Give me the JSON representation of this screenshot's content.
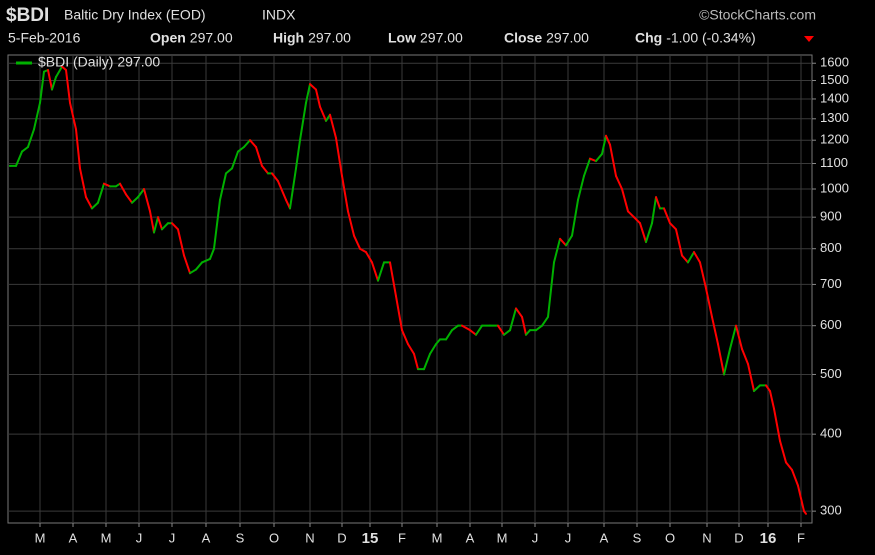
{
  "chart_data": {
    "type": "line",
    "title": "$BDI",
    "subtitle": "Baltic Dry Index (EOD)",
    "exchange": "INDX",
    "source": "©StockCharts.com",
    "quote": {
      "date": "5-Feb-2016",
      "fields": [
        {
          "label": "Open",
          "value": "297.00"
        },
        {
          "label": "High",
          "value": "297.00"
        },
        {
          "label": "Low",
          "value": "297.00"
        },
        {
          "label": "Close",
          "value": "297.00"
        },
        {
          "label": "Chg",
          "value": "-1.00 (-0.34%)"
        }
      ]
    },
    "up_color": "#00b000",
    "down_color": "#ff0000",
    "log_scale": true,
    "grid": true,
    "legend": "top-left",
    "xlim": [
      -2,
      802
    ],
    "xticks": [
      {
        "value": 30,
        "label": "M"
      },
      {
        "value": 63,
        "label": "A"
      },
      {
        "value": 96,
        "label": "M"
      },
      {
        "value": 129,
        "label": "J"
      },
      {
        "value": 162,
        "label": "J"
      },
      {
        "value": 196,
        "label": "A"
      },
      {
        "value": 230,
        "label": "S"
      },
      {
        "value": 264,
        "label": "O"
      },
      {
        "value": 300,
        "label": "N"
      },
      {
        "value": 332,
        "label": "D"
      },
      {
        "value": 360,
        "label": "15"
      },
      {
        "value": 392,
        "label": "F"
      },
      {
        "value": 427,
        "label": "M"
      },
      {
        "value": 460,
        "label": "A"
      },
      {
        "value": 492,
        "label": "M"
      },
      {
        "value": 525,
        "label": "J"
      },
      {
        "value": 558,
        "label": "J"
      },
      {
        "value": 594,
        "label": "A"
      },
      {
        "value": 627,
        "label": "S"
      },
      {
        "value": 660,
        "label": "O"
      },
      {
        "value": 697,
        "label": "N"
      },
      {
        "value": 729,
        "label": "D"
      },
      {
        "value": 758,
        "label": "16"
      },
      {
        "value": 791,
        "label": "F"
      }
    ],
    "ylim": [
      287,
      1650
    ],
    "yticks": [
      300,
      400,
      500,
      600,
      700,
      800,
      900,
      1000,
      1100,
      1200,
      1300,
      1400,
      1500,
      1600
    ],
    "series": [
      {
        "name": "$BDI (Daily) 297.00",
        "color": "#00b000",
        "x": [
          0,
          6,
          12,
          18,
          24,
          30,
          34,
          38,
          42,
          46,
          52,
          56,
          60,
          66,
          70,
          76,
          82,
          88,
          94,
          100,
          106,
          110,
          116,
          122,
          128,
          134,
          140,
          144,
          148,
          152,
          158,
          162,
          168,
          174,
          180,
          186,
          192,
          200,
          204,
          210,
          216,
          222,
          228,
          234,
          240,
          246,
          252,
          258,
          262,
          268,
          276,
          280,
          286,
          290,
          296,
          300,
          306,
          310,
          316,
          320,
          326,
          332,
          338,
          344,
          350,
          356,
          362,
          368,
          374,
          380,
          386,
          392,
          398,
          404,
          408,
          414,
          420,
          426,
          430,
          436,
          442,
          448,
          452,
          460,
          466,
          472,
          480,
          488,
          494,
          500,
          506,
          512,
          516,
          520,
          526,
          532,
          538,
          544,
          550,
          556,
          562,
          568,
          574,
          580,
          586,
          592,
          596,
          600,
          606,
          612,
          618,
          624,
          630,
          636,
          642,
          646,
          650,
          654,
          660,
          666,
          672,
          678,
          684,
          690,
          696,
          702,
          708,
          714,
          720,
          726,
          732,
          738,
          744,
          750,
          756,
          760,
          764,
          770,
          776,
          782,
          788,
          794,
          796
        ],
        "values": [
          1090,
          1090,
          1150,
          1170,
          1250,
          1380,
          1550,
          1560,
          1450,
          1520,
          1580,
          1560,
          1380,
          1250,
          1080,
          970,
          930,
          950,
          1020,
          1010,
          1010,
          1020,
          980,
          950,
          970,
          1000,
          920,
          850,
          900,
          860,
          880,
          880,
          860,
          780,
          730,
          740,
          760,
          770,
          800,
          960,
          1060,
          1080,
          1150,
          1170,
          1200,
          1170,
          1090,
          1060,
          1060,
          1030,
          960,
          930,
          1080,
          1200,
          1380,
          1480,
          1450,
          1360,
          1290,
          1320,
          1210,
          1050,
          920,
          840,
          800,
          790,
          760,
          710,
          760,
          760,
          670,
          590,
          560,
          540,
          510,
          510,
          540,
          560,
          570,
          570,
          590,
          600,
          600,
          590,
          580,
          600,
          600,
          600,
          580,
          590,
          640,
          620,
          580,
          590,
          590,
          600,
          620,
          760,
          830,
          810,
          840,
          960,
          1050,
          1120,
          1110,
          1140,
          1220,
          1180,
          1050,
          1000,
          920,
          900,
          880,
          820,
          880,
          970,
          930,
          930,
          880,
          860,
          780,
          760,
          790,
          760,
          690,
          620,
          560,
          500,
          550,
          600,
          550,
          520,
          470,
          480,
          480,
          470,
          440,
          390,
          360,
          350,
          330,
          300,
          297
        ]
      }
    ]
  }
}
